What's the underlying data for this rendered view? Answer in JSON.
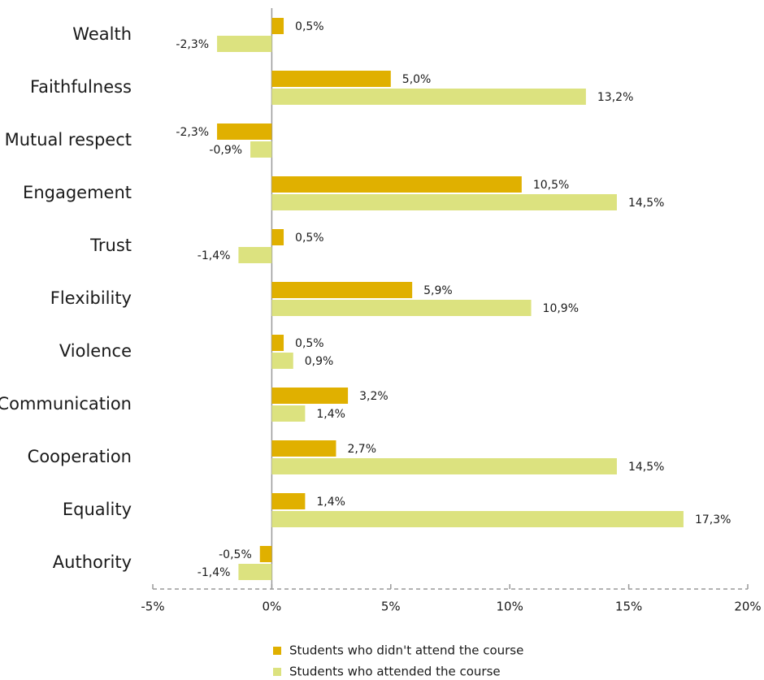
{
  "chart_data": {
    "type": "hbar",
    "categories": [
      "Wealth",
      "Faithfulness",
      "Mutual respect",
      "Engagement",
      "Trust",
      "Flexibility",
      "Violence",
      "Communication",
      "Cooperation",
      "Equality",
      "Authority"
    ],
    "series": [
      {
        "name": "Students who didn't attend the course",
        "color": "#e0b000",
        "values": [
          0.5,
          5.0,
          -2.3,
          10.5,
          0.5,
          5.9,
          0.5,
          3.2,
          2.7,
          1.4,
          -0.5
        ],
        "value_labels": [
          "0,5%",
          "5,0%",
          "-2,3%",
          "10,5%",
          "0,5%",
          "5,9%",
          "0,5%",
          "3,2%",
          "2,7%",
          "1,4%",
          "-0,5%"
        ]
      },
      {
        "name": "Students who attended the course",
        "color": "#dce27f",
        "values": [
          -2.3,
          13.2,
          -0.9,
          14.5,
          -1.4,
          10.9,
          0.9,
          1.4,
          14.5,
          17.3,
          -1.4
        ],
        "value_labels": [
          "-2,3%",
          "13,2%",
          "-0,9%",
          "14,5%",
          "-1,4%",
          "10,9%",
          "0,9%",
          "1,4%",
          "14,5%",
          "17,3%",
          "-1,4%"
        ]
      }
    ],
    "xlim": [
      -5,
      20
    ],
    "xticks": [
      {
        "value": -5,
        "label": "-5%"
      },
      {
        "value": 0,
        "label": "0%"
      },
      {
        "value": 5,
        "label": "5%"
      },
      {
        "value": 10,
        "label": "10%"
      },
      {
        "value": 15,
        "label": "15%"
      },
      {
        "value": 20,
        "label": "20%"
      }
    ],
    "legend": "bottom"
  }
}
